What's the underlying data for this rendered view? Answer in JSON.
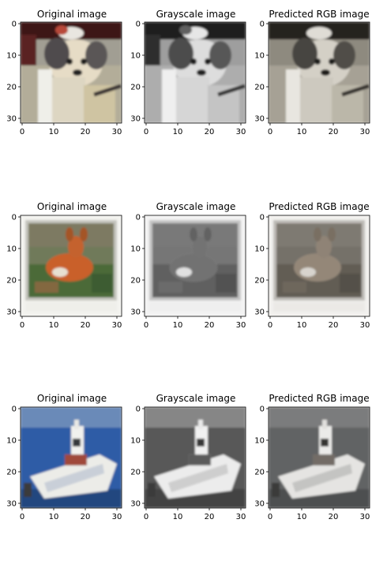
{
  "figure": {
    "axis": {
      "xticks": [
        "0",
        "10",
        "20",
        "30"
      ],
      "yticks": [
        "0",
        "10",
        "20",
        "30"
      ],
      "range": [
        0,
        31
      ]
    },
    "panel_titles": [
      "Original image",
      "Grayscale image",
      "Predicted RGB image"
    ],
    "rows": [
      {
        "subject": "dog",
        "titles": [
          "Original image",
          "Grayscale image",
          "Predicted RGB image"
        ],
        "palette": {
          "sky": "#4a1e1e",
          "fur": "#e8ddc8",
          "patch": "#5d5a5a",
          "ground": "#b4ae9a",
          "accent": "#b44a3a"
        }
      },
      {
        "subject": "deer",
        "titles": [
          "Original image",
          "Grayscale image",
          "Predicted RGB image"
        ],
        "palette": {
          "border": "#f2f2ee",
          "frame": "#c9c9c2",
          "grass": "#4d6a3b",
          "deer": "#d3662f",
          "shade": "#7a4a2a"
        }
      },
      {
        "subject": "boat",
        "titles": [
          "Original image",
          "Grayscale image",
          "Predicted RGB image"
        ],
        "palette": {
          "sky": "#6b8ab8",
          "water": "#2f5fa8",
          "hull": "#eeeeea",
          "shadow": "#a9b4c6",
          "accent": "#a04a3a"
        }
      }
    ]
  }
}
